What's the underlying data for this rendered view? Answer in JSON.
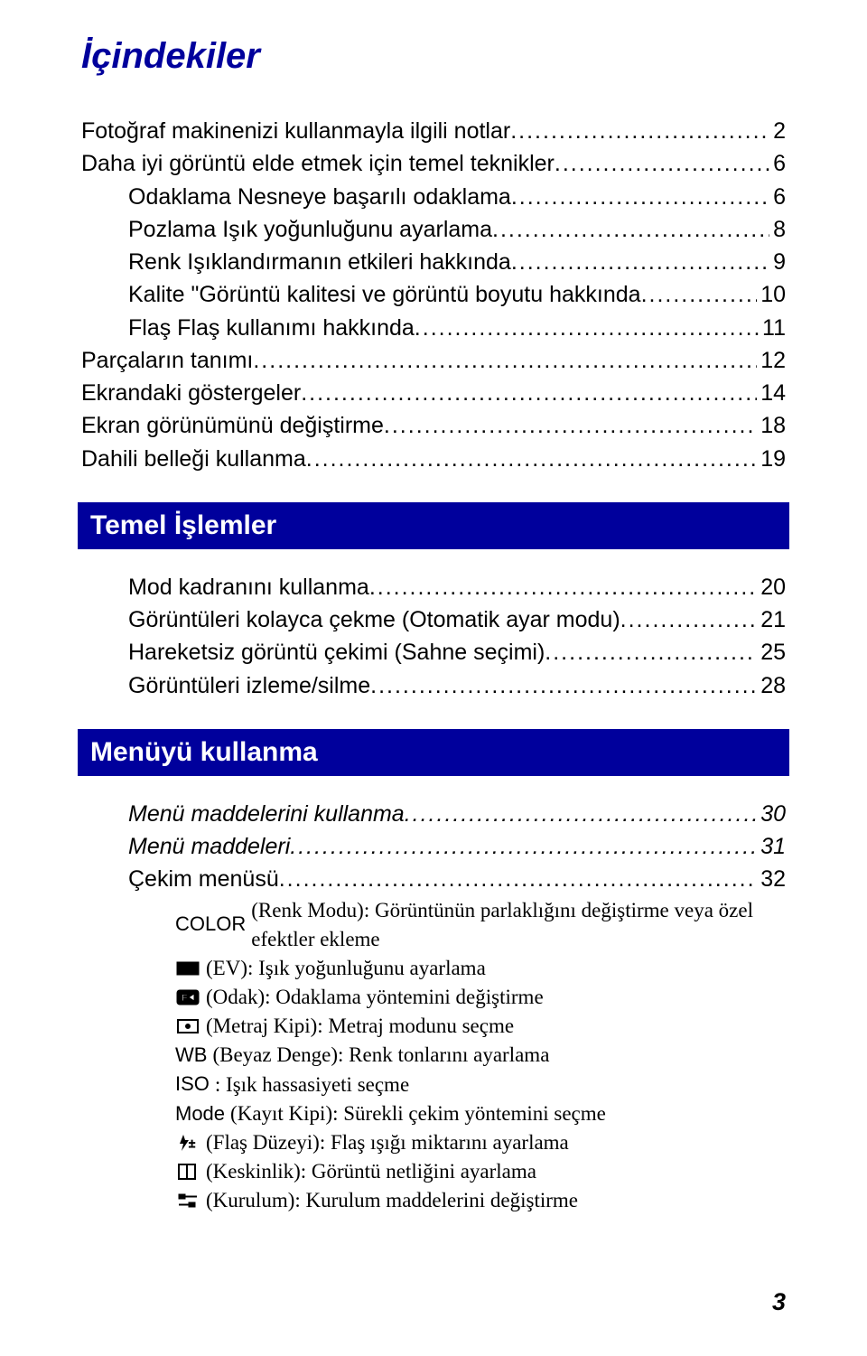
{
  "colors": {
    "brand": "#00009c",
    "text": "#000000",
    "bg": "#ffffff"
  },
  "title": "İçindekiler",
  "group1": [
    {
      "label": "Fotoğraf makinenizi kullanmayla ilgili notlar",
      "page": "2",
      "level": 1
    },
    {
      "label": "Daha iyi görüntü elde etmek için temel teknikler",
      "page": "6",
      "level": 1
    },
    {
      "label": "Odaklama Nesneye başarılı odaklama",
      "page": "6",
      "level": 2
    },
    {
      "label": "Pozlama Işık yoğunluğunu ayarlama",
      "page": "8",
      "level": 2
    },
    {
      "label": "Renk Işıklandırmanın etkileri hakkında",
      "page": "9",
      "level": 2
    },
    {
      "label": "Kalite \"Görüntü kalitesi ve görüntü boyutu hakkında",
      "page": "10",
      "level": 2
    },
    {
      "label": "Flaş Flaş kullanımı hakkında",
      "page": "11",
      "level": 2
    },
    {
      "label": "Parçaların tanımı",
      "page": "12",
      "level": 1
    },
    {
      "label": "Ekrandaki göstergeler",
      "page": "14",
      "level": 1
    },
    {
      "label": "Ekran görünümünü değiştirme",
      "page": "18",
      "level": 1
    },
    {
      "label": "Dahili belleği kullanma",
      "page": "19",
      "level": 1
    }
  ],
  "section1": {
    "title": "Temel İşlemler",
    "items": [
      {
        "label": "Mod kadranını kullanma",
        "page": "20"
      },
      {
        "label": "Görüntüleri kolayca çekme (Otomatik ayar modu)",
        "page": "21"
      },
      {
        "label": "Hareketsiz görüntü çekimi (Sahne seçimi)",
        "page": "25"
      },
      {
        "label": "Görüntüleri izleme/silme",
        "page": "28"
      }
    ]
  },
  "section2": {
    "title": "Menüyü kullanma",
    "italic_items": [
      {
        "label": "Menü maddelerini kullanma",
        "page": "30"
      },
      {
        "label": "Menü maddeleri",
        "page": "31"
      }
    ],
    "items": [
      {
        "label": "Çekim menüsü",
        "page": "32"
      }
    ],
    "sub": [
      {
        "pre": "COLOR",
        "text": " (Renk Modu): Görüntünün parlaklığını değiştirme veya özel efektler ekleme",
        "icon": ""
      },
      {
        "pre": "",
        "text": " (EV): Işık yoğunluğunu ayarlama",
        "icon": "ev"
      },
      {
        "pre": "",
        "text": " (Odak): Odaklama yöntemini değiştirme",
        "icon": "focus"
      },
      {
        "pre": "",
        "text": " (Metraj Kipi): Metraj modunu seçme",
        "icon": "meter"
      },
      {
        "pre": "WB",
        "text": " (Beyaz Denge): Renk tonlarını ayarlama",
        "icon": ""
      },
      {
        "pre": "ISO",
        "text": ": Işık hassasiyeti seçme",
        "icon": ""
      },
      {
        "pre": "Mode",
        "text": " (Kayıt Kipi): Sürekli çekim yöntemini seçme",
        "icon": ""
      },
      {
        "pre": "",
        "text": " (Flaş Düzeyi): Flaş ışığı miktarını ayarlama",
        "icon": "flash"
      },
      {
        "pre": "",
        "text": " (Keskinlik): Görüntü netliğini ayarlama",
        "icon": "sharp"
      },
      {
        "pre": "",
        "text": " (Kurulum): Kurulum maddelerini değiştirme",
        "icon": "setup"
      }
    ]
  },
  "footer_page": "3"
}
